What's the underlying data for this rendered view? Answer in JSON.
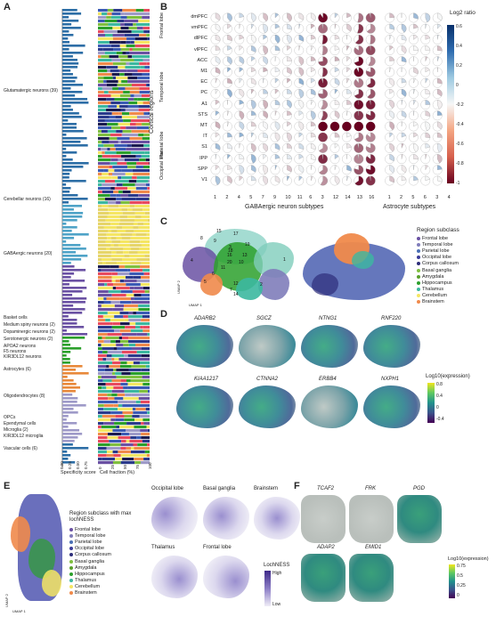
{
  "panels": {
    "a": {
      "label": "A",
      "groups": [
        {
          "name": "Glutamatergic neurons (39)",
          "top": 100
        },
        {
          "name": "Cerebellar neurons (16)",
          "top": 222
        },
        {
          "name": "GABAergic neurons (20)",
          "top": 283
        },
        {
          "name": "Basket cells",
          "top": 355
        },
        {
          "name": "Medium spiny neurons (2)",
          "top": 363
        },
        {
          "name": "Dopaminergic neurons (2)",
          "top": 371
        },
        {
          "name": "Serotonergic neurons (2)",
          "top": 379
        },
        {
          "name": "APOA2 neurons",
          "top": 387
        },
        {
          "name": "F5 neurons",
          "top": 393
        },
        {
          "name": "KIR3DL12 neurons",
          "top": 399
        },
        {
          "name": "Astrocytes (6)",
          "top": 413
        },
        {
          "name": "Oligodendrocytes (8)",
          "top": 443
        },
        {
          "name": "OPCs",
          "top": 467
        },
        {
          "name": "Ependymal cells",
          "top": 474
        },
        {
          "name": "Microglia (2)",
          "top": 481
        },
        {
          "name": "KIR3DL12 microglia",
          "top": 488
        },
        {
          "name": "Vascular cells (6)",
          "top": 502
        }
      ],
      "xlabel_left": "Specificity score",
      "xlabel_right": "Cell fraction (%)",
      "ticks_left": [
        "0.00",
        "0.25",
        "0.50",
        "0.75"
      ],
      "ticks_right": [
        "0",
        "25",
        "50",
        "75",
        "100"
      ]
    },
    "b": {
      "label": "B",
      "ylabel": "Cortical regions",
      "rows": [
        "dmPFC",
        "vmPFC",
        "dlPFC",
        "vlPFC",
        "ACC",
        "M1",
        "EC",
        "PC",
        "A1",
        "STS",
        "MT",
        "IT",
        "S1",
        "IPP",
        "SPP",
        "V1"
      ],
      "lobes": [
        {
          "name": "Frontal lobe",
          "top": 43
        },
        {
          "name": "Temporal lobe",
          "top": 115
        },
        {
          "name": "Parietal lobe",
          "top": 178
        },
        {
          "name": "Occipital lobe",
          "top": 202
        }
      ],
      "cols_gaba": [
        "1",
        "2",
        "4",
        "5",
        "7",
        "9",
        "10",
        "11",
        "6",
        "3",
        "12",
        "14",
        "13",
        "16"
      ],
      "cols_astro": [
        "1",
        "2",
        "5",
        "6",
        "3",
        "4"
      ],
      "xlabel_gaba": "GABAergic neuron subtypes",
      "xlabel_astro": "Astrocyte subtypes",
      "colorbar_title": "Log2 ratio",
      "colorbar_ticks": [
        "0.6",
        "0.4",
        "0.2",
        "0",
        "-0.2",
        "-0.4",
        "-0.6",
        "-0.8",
        "-1"
      ]
    },
    "c": {
      "label": "C",
      "legend_title": "Region subclass",
      "clusters": [
        "1",
        "2",
        "3",
        "4",
        "5",
        "6",
        "7",
        "8",
        "9",
        "10",
        "11",
        "12",
        "13",
        "14",
        "15",
        "16",
        "17",
        "18",
        "19",
        "20"
      ],
      "legend": [
        {
          "name": "Frontal lobe",
          "color": "#6a51a3"
        },
        {
          "name": "Temporal lobe",
          "color": "#807dba"
        },
        {
          "name": "Parietal lobe",
          "color": "#4a6fb5"
        },
        {
          "name": "Occipital lobe",
          "color": "#3b3b98"
        },
        {
          "name": "Corpus callosum",
          "color": "#2d2d7a"
        },
        {
          "name": "Basal ganglia",
          "color": "#7fbf3f"
        },
        {
          "name": "Amygdala",
          "color": "#5aa02c"
        },
        {
          "name": "Hippocampus",
          "color": "#2ca02c"
        },
        {
          "name": "Thalamus",
          "color": "#3cb8a0"
        },
        {
          "name": "Cerebellum",
          "color": "#f5e663"
        },
        {
          "name": "Brainstem",
          "color": "#f08a4b"
        }
      ],
      "umap1": "UMAP 1",
      "umap2": "UMAP 2"
    },
    "d": {
      "label": "D",
      "genes": [
        "ADARB2",
        "SGCZ",
        "NTNG1",
        "RNF220",
        "KIAA1217",
        "CTNNA2",
        "ERBB4",
        "NXPH1"
      ],
      "colorbar_title": "Log10(expression)",
      "colorbar_ticks": [
        "0.8",
        "0.4",
        "0",
        "-0.4"
      ]
    },
    "e": {
      "label": "E",
      "legend_title": "Region subclass with max lochNESS",
      "legend": [
        {
          "name": "Frontal lobe",
          "color": "#6a51a3"
        },
        {
          "name": "Temporal lobe",
          "color": "#807dba"
        },
        {
          "name": "Parietal lobe",
          "color": "#4a6fb5"
        },
        {
          "name": "Occipital lobe",
          "color": "#3b3b98"
        },
        {
          "name": "Corpus callosum",
          "color": "#2d2d7a"
        },
        {
          "name": "Basal ganglia",
          "color": "#7fbf3f"
        },
        {
          "name": "Amygdala",
          "color": "#5aa02c"
        },
        {
          "name": "Hippocampus",
          "color": "#2ca02c"
        },
        {
          "name": "Thalamus",
          "color": "#3cb8a0"
        },
        {
          "name": "Cerebellum",
          "color": "#f5e663"
        },
        {
          "name": "Brainstem",
          "color": "#f08a4b"
        }
      ],
      "maps": [
        "Occipital lobe",
        "Basal ganglia",
        "Brainstem",
        "Thalamus",
        "Frontal lobe"
      ],
      "colorbar_title": "LochNESS",
      "high": "High",
      "low": "Low",
      "umap1": "UMAP 1",
      "umap2": "UMAP 2"
    },
    "f": {
      "label": "F",
      "genes": [
        "TCAF2",
        "FRK",
        "PGD",
        "ADAP2",
        "EMID1"
      ],
      "colorbar_title": "Log10(expression)",
      "colorbar_ticks": [
        "0.75",
        "0.5",
        "0.25",
        "0"
      ]
    }
  }
}
